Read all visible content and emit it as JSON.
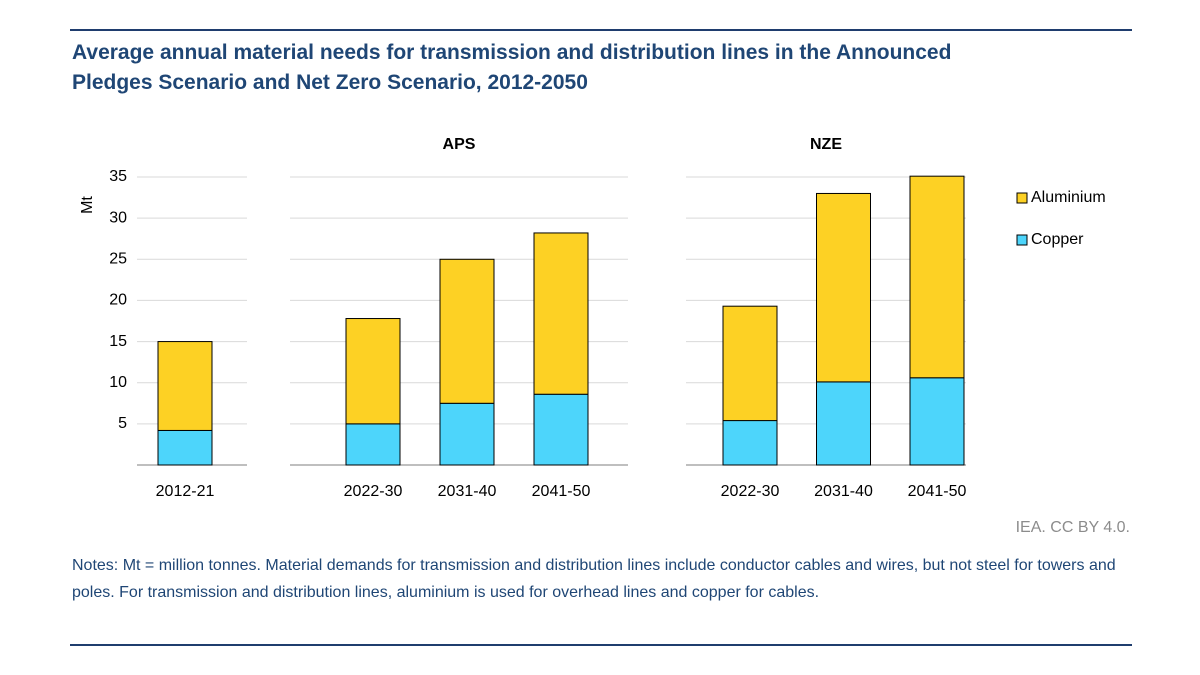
{
  "chart_data": {
    "type": "bar",
    "stacked": true,
    "title": "Average annual material needs for transmission and distribution lines in the Announced Pledges Scenario and Net Zero Scenario, 2012-2050",
    "ylabel": "Mt",
    "ylim": [
      0,
      35
    ],
    "yticks": [
      5,
      10,
      15,
      20,
      25,
      30,
      35
    ],
    "grid": true,
    "legend": "right",
    "groups": [
      {
        "categories": [
          "2012-21"
        ]
      },
      {
        "title": "APS",
        "categories": [
          "2022-30",
          "2031-40",
          "2041-50"
        ]
      },
      {
        "title": "NZE",
        "categories": [
          "2022-30",
          "2031-40",
          "2041-50"
        ]
      }
    ],
    "series": [
      {
        "name": "Copper",
        "color": "#4dd5fb",
        "values": [
          4.2,
          5.0,
          7.5,
          8.6,
          5.4,
          10.1,
          10.6
        ]
      },
      {
        "name": "Aluminium",
        "color": "#fdd124",
        "values": [
          10.8,
          12.8,
          17.5,
          19.6,
          13.9,
          22.9,
          24.5
        ]
      }
    ],
    "source": "IEA. CC BY 4.0.",
    "notes": "Notes: Mt = million tonnes. Material demands for transmission and distribution lines include conductor cables and wires, but not steel for towers and poles. For transmission and distribution lines, aluminium is used for overhead lines and copper for cables."
  }
}
